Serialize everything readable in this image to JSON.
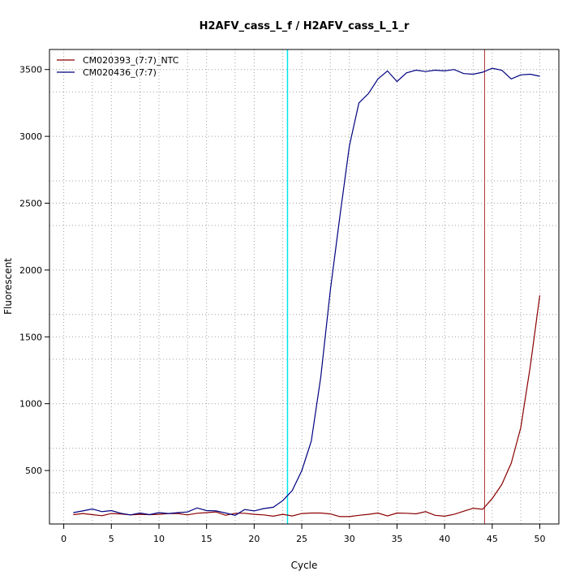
{
  "chart_data": {
    "type": "line",
    "title": "H2AFV_cass_L_f / H2AFV_cass_L_1_r",
    "xlabel": "Cycle",
    "ylabel": "Fluorescent",
    "xlim": [
      -1.5,
      52
    ],
    "ylim": [
      100,
      3650
    ],
    "x_ticks": [
      0,
      5,
      10,
      15,
      20,
      25,
      30,
      35,
      40,
      45,
      50
    ],
    "y_ticks": [
      500,
      1000,
      1500,
      2000,
      2500,
      3000,
      3500
    ],
    "x_ticks_minor": [
      3,
      8,
      13,
      18,
      23,
      28,
      33,
      38,
      43,
      48
    ],
    "y_ticks_minor": [
      333,
      667,
      1333,
      1667,
      2333,
      2667,
      3333
    ],
    "grid": true,
    "legend_position": "top-left",
    "vlines": [
      {
        "x": 23.5,
        "color": "#00e5ee"
      },
      {
        "x": 44.2,
        "color": "#b03030"
      }
    ],
    "x": [
      1,
      2,
      3,
      4,
      5,
      6,
      7,
      8,
      9,
      10,
      11,
      12,
      13,
      14,
      15,
      16,
      17,
      18,
      19,
      20,
      21,
      22,
      23,
      24,
      25,
      26,
      27,
      28,
      29,
      30,
      31,
      32,
      33,
      34,
      35,
      36,
      37,
      38,
      39,
      40,
      41,
      42,
      43,
      44,
      45,
      46,
      47,
      48,
      49,
      50
    ],
    "series": [
      {
        "name": "CM020393_(7:7)_NTC",
        "color": "#8b0000",
        "values": [
          170,
          178,
          170,
          162,
          178,
          175,
          168,
          172,
          170,
          172,
          178,
          178,
          168,
          180,
          185,
          190,
          165,
          180,
          180,
          172,
          168,
          158,
          172,
          160,
          178,
          182,
          182,
          175,
          155,
          155,
          165,
          172,
          182,
          160,
          182,
          180,
          176,
          192,
          165,
          158,
          172,
          195,
          218,
          210,
          290,
          395,
          555,
          820,
          1280,
          1810
        ]
      },
      {
        "name": "CM020436_(7:7)",
        "color": "#000080",
        "values": [
          185,
          198,
          212,
          192,
          200,
          180,
          168,
          182,
          170,
          185,
          178,
          185,
          190,
          220,
          200,
          198,
          182,
          165,
          208,
          198,
          215,
          225,
          275,
          350,
          500,
          720,
          1200,
          1850,
          2400,
          2930,
          3250,
          3320,
          3430,
          3490,
          3410,
          3475,
          3495,
          3485,
          3495,
          3490,
          3500,
          3470,
          3465,
          3480,
          3510,
          3495,
          3430,
          3460,
          3465,
          3450
        ]
      }
    ]
  }
}
